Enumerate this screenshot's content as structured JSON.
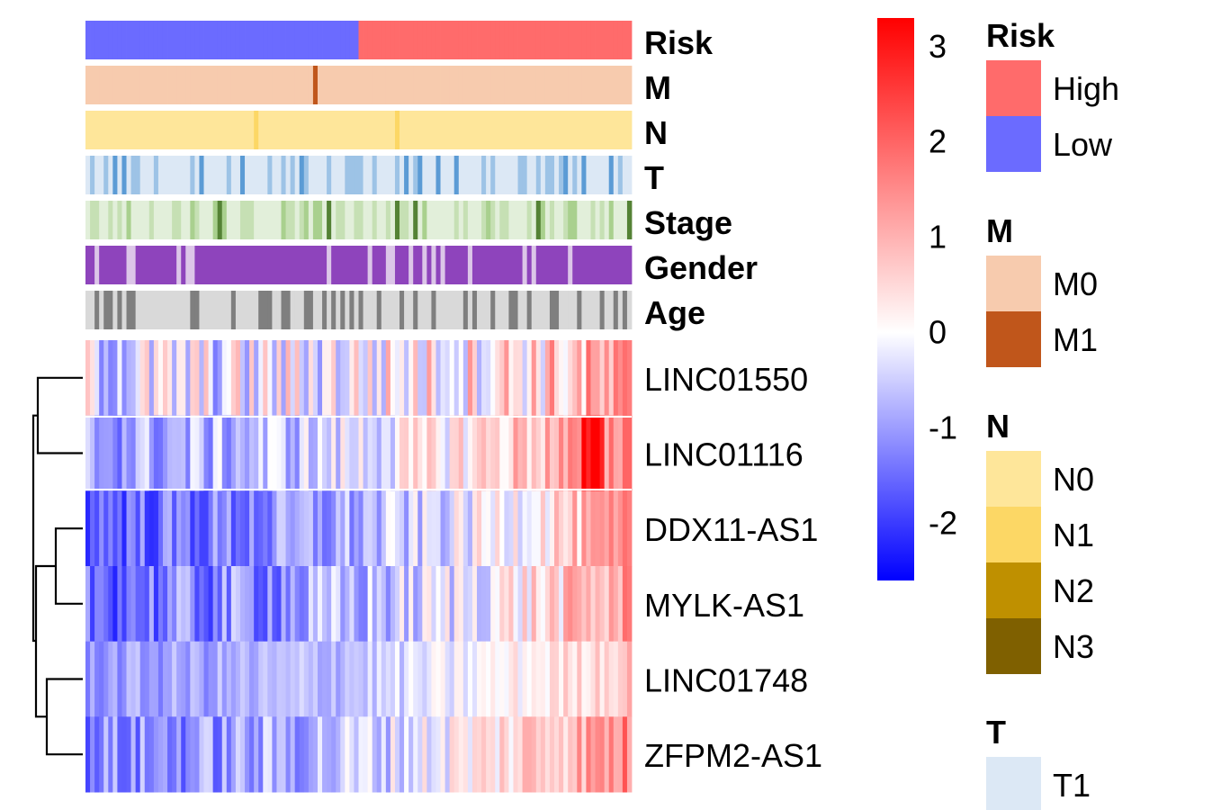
{
  "chart_data": {
    "type": "heatmap",
    "title": "",
    "annotation_tracks": [
      {
        "name": "Risk",
        "colors": {
          "High": "#FF6B6B",
          "Low": "#6B6BFF"
        }
      },
      {
        "name": "M",
        "colors": {
          "M0": "#F7CBAE",
          "M1": "#C0561B"
        }
      },
      {
        "name": "N",
        "colors": {
          "N0": "#FEE69A",
          "N1": "#FCD765",
          "N2": "#BF9000",
          "N3": "#7F6000"
        }
      },
      {
        "name": "T",
        "colors": {
          "T1": "#DCE8F5",
          "T2": "#9DC3E6",
          "T3": "#5B9BD5",
          "T4": "#2E75B6"
        }
      },
      {
        "name": "Stage",
        "colors": {
          "Stage I": "#E2EFDA",
          "Stage II": "#C6E0B4",
          "Stage III": "#A9D08E",
          "Stage IV": "#548235"
        }
      },
      {
        "name": "Gender",
        "colors": {
          "Female": "#DCC6E8",
          "Male": "#8E44BC"
        }
      },
      {
        "name": "Age",
        "colors": {
          "<=65": "#D9D9D9",
          ">65": "#7F7F7F"
        }
      }
    ],
    "rows": [
      "LINC01550",
      "LINC01116",
      "DDX11-AS1",
      "MYLK-AS1",
      "LINC01748",
      "ZFPM2-AS1"
    ],
    "dendrogram": "left",
    "color_scale": {
      "min": -2.6,
      "max": 3.3,
      "ticks": [
        3,
        2,
        1,
        0,
        -1,
        -2
      ],
      "tick_labels": [
        "3",
        "2",
        "1",
        "0",
        "-1",
        "-2"
      ],
      "colors": [
        "#0000FF",
        "#FFFFFF",
        "#FF0000"
      ]
    },
    "legends": [
      {
        "title": "Risk",
        "items": [
          {
            "label": "High",
            "color": "#FF6B6B"
          },
          {
            "label": "Low",
            "color": "#6B6BFF"
          }
        ]
      },
      {
        "title": "M",
        "items": [
          {
            "label": "M0",
            "color": "#F7CBAE"
          },
          {
            "label": "M1",
            "color": "#C0561B"
          }
        ]
      },
      {
        "title": "N",
        "items": [
          {
            "label": "N0",
            "color": "#FEE69A"
          },
          {
            "label": "N1",
            "color": "#FCD765"
          },
          {
            "label": "N2",
            "color": "#BF9000"
          },
          {
            "label": "N3",
            "color": "#7F6000"
          }
        ]
      },
      {
        "title": "T",
        "items": [
          {
            "label": "T1",
            "color": "#DCE8F5"
          }
        ]
      }
    ]
  }
}
